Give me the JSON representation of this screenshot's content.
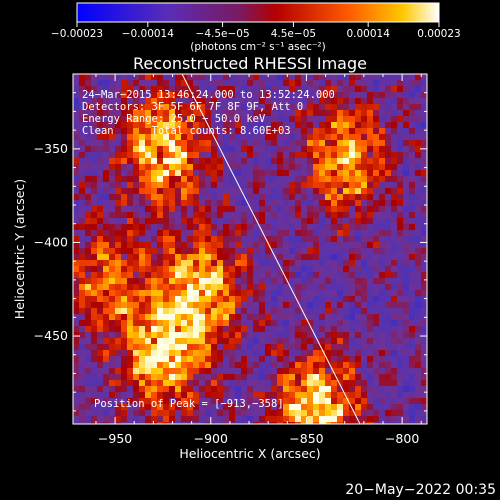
{
  "chart_data": {
    "type": "heatmap",
    "title": "Reconstructed RHESSI Image",
    "xlabel": "Heliocentric X (arcsec)",
    "ylabel": "Heliocentric Y (arcsec)",
    "xlim": [
      -972,
      -787
    ],
    "ylim": [
      -497,
      -310
    ],
    "x_ticks": [
      -950,
      -900,
      -850,
      -800
    ],
    "y_ticks": [
      -350,
      -400,
      -450
    ],
    "x_tick_labels": [
      "−950",
      "−900",
      "−850",
      "−800"
    ],
    "y_tick_labels": [
      "−350",
      "−400",
      "−450"
    ],
    "colorbar": {
      "range": [
        -0.00023,
        0.00023
      ],
      "ticks": [
        -0.00023,
        -0.00014,
        -4.5e-05,
        4.5e-05,
        0.00014,
        0.00023
      ],
      "tick_labels": [
        "−0.00023",
        "−0.00014",
        "−4.5e−05",
        "4.5e−05",
        "0.00014",
        "0.00023"
      ],
      "unit_label": "(photons cm⁻² s⁻¹ asec⁻²)",
      "colors": [
        "#0000ff",
        "#6a2fb0",
        "#a00000",
        "#ff5000",
        "#ffc000",
        "#ffffff"
      ]
    },
    "annotations": [
      "24−Mar−2015 13:46:24.000 to 13:52:24.000",
      "Detectors: 3F 5F 6F 7F 8F 9F, Att 0",
      "Energy Range: 25.0 − 50.0 keV",
      "Clean      Total counts: 8.60E+03"
    ],
    "peak_label": "Position of Peak = [−913,−358]",
    "peak_position": [
      -913,
      -358
    ],
    "limb_line": [
      [
        -915,
        -310
      ],
      [
        -822,
        -497
      ]
    ],
    "bright_regions": [
      {
        "x": -925,
        "y": -350,
        "intensity": 0.9
      },
      {
        "x": -905,
        "y": -425,
        "intensity": 0.85
      },
      {
        "x": -925,
        "y": -460,
        "intensity": 0.9
      },
      {
        "x": -845,
        "y": -490,
        "intensity": 1.0
      },
      {
        "x": -830,
        "y": -355,
        "intensity": 0.75
      },
      {
        "x": -955,
        "y": -420,
        "intensity": 0.6
      }
    ]
  },
  "timestamp": "20−May−2022 00:35"
}
